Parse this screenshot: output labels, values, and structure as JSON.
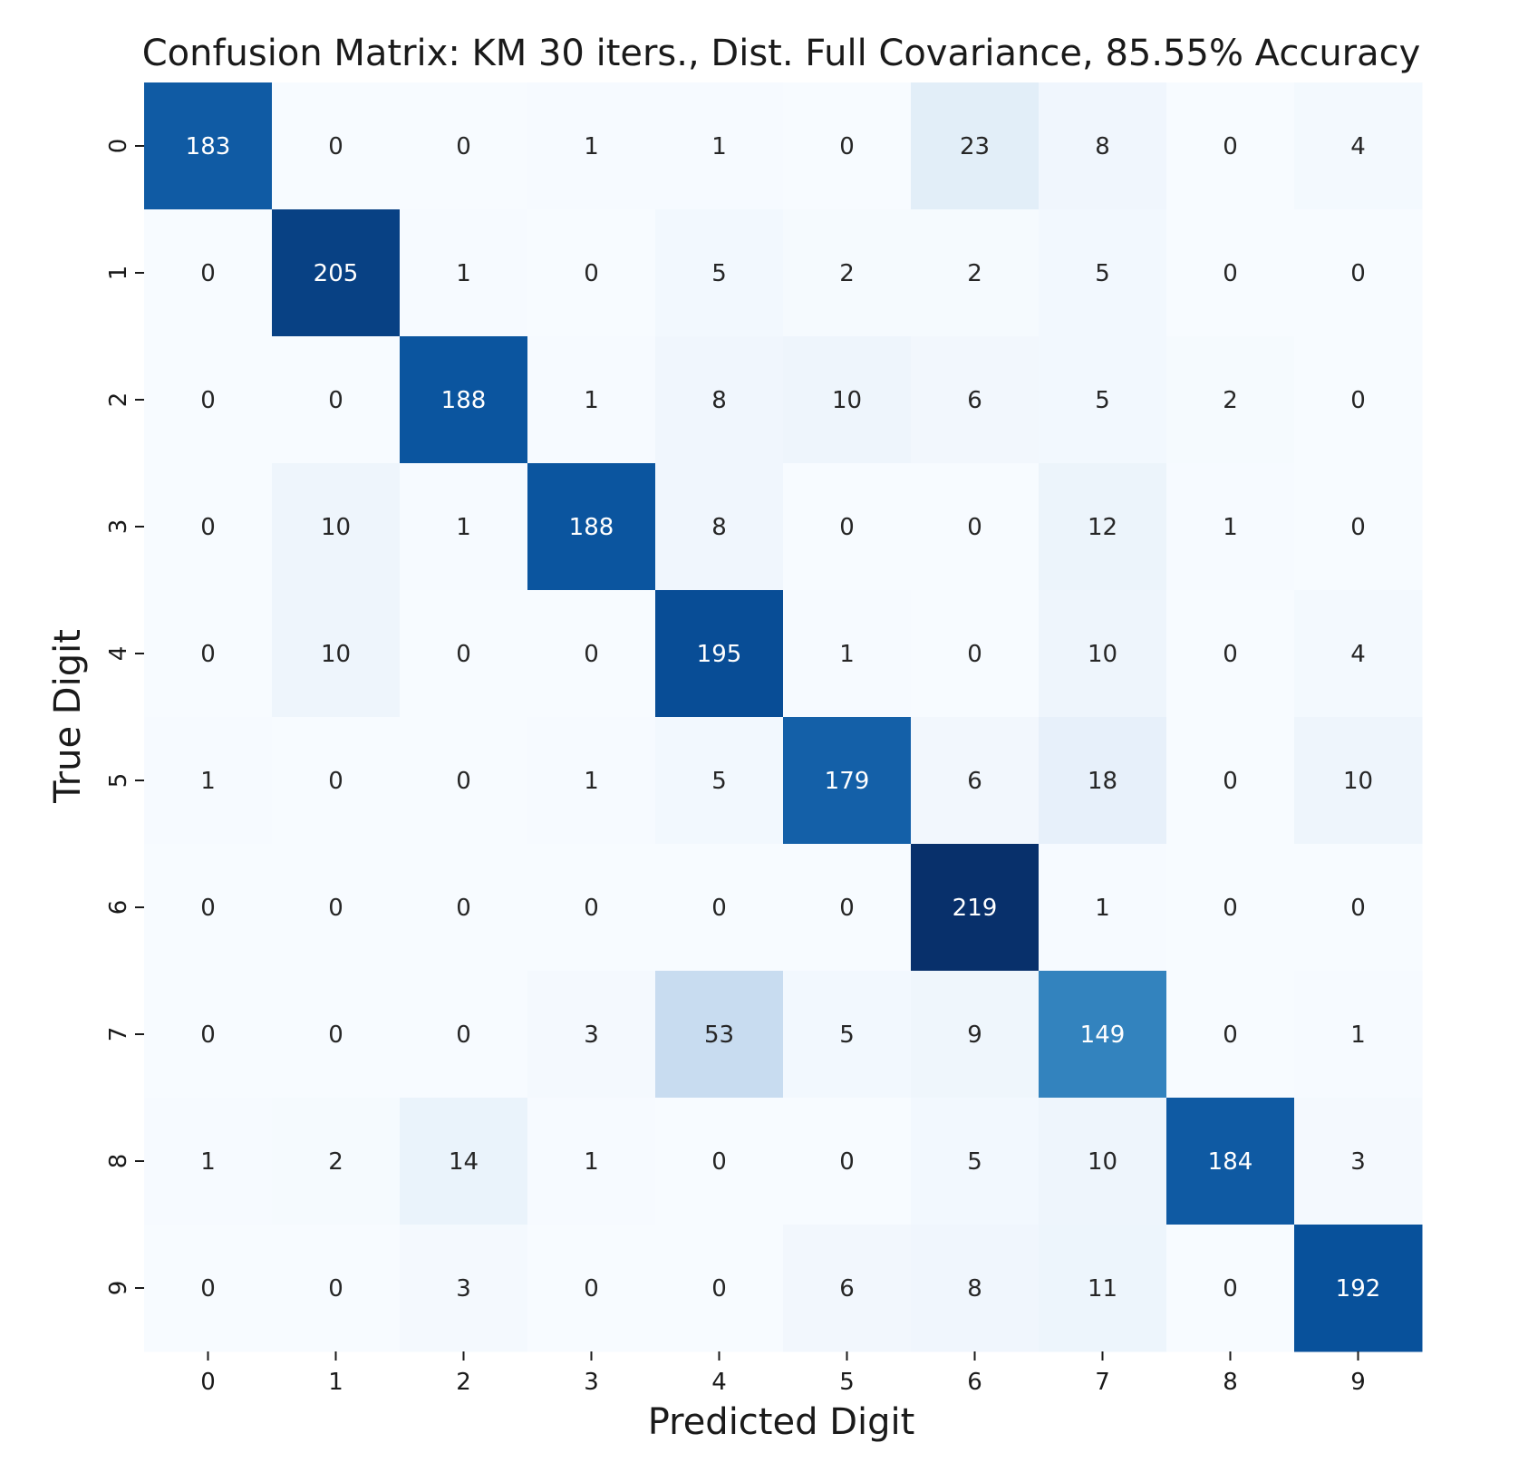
{
  "chart_data": {
    "type": "heatmap",
    "title": "Confusion Matrix: KM 30 iters., Dist. Full Covariance, 85.55% Accuracy",
    "xlabel": "Predicted Digit",
    "ylabel": "True Digit",
    "x_categories": [
      "0",
      "1",
      "2",
      "3",
      "4",
      "5",
      "6",
      "7",
      "8",
      "9"
    ],
    "y_categories": [
      "0",
      "1",
      "2",
      "3",
      "4",
      "5",
      "6",
      "7",
      "8",
      "9"
    ],
    "values": [
      [
        183,
        0,
        0,
        1,
        1,
        0,
        23,
        8,
        0,
        4
      ],
      [
        0,
        205,
        1,
        0,
        5,
        2,
        2,
        5,
        0,
        0
      ],
      [
        0,
        0,
        188,
        1,
        8,
        10,
        6,
        5,
        2,
        0
      ],
      [
        0,
        10,
        1,
        188,
        8,
        0,
        0,
        12,
        1,
        0
      ],
      [
        0,
        10,
        0,
        0,
        195,
        1,
        0,
        10,
        0,
        4
      ],
      [
        1,
        0,
        0,
        1,
        5,
        179,
        6,
        18,
        0,
        10
      ],
      [
        0,
        0,
        0,
        0,
        0,
        0,
        219,
        1,
        0,
        0
      ],
      [
        0,
        0,
        0,
        3,
        53,
        5,
        9,
        149,
        0,
        1
      ],
      [
        1,
        2,
        14,
        1,
        0,
        0,
        5,
        10,
        184,
        3
      ],
      [
        0,
        0,
        3,
        0,
        0,
        6,
        8,
        11,
        0,
        192
      ]
    ],
    "value_range": [
      0,
      219
    ],
    "colormap": "Blues",
    "colorbar": false,
    "grid": false
  }
}
